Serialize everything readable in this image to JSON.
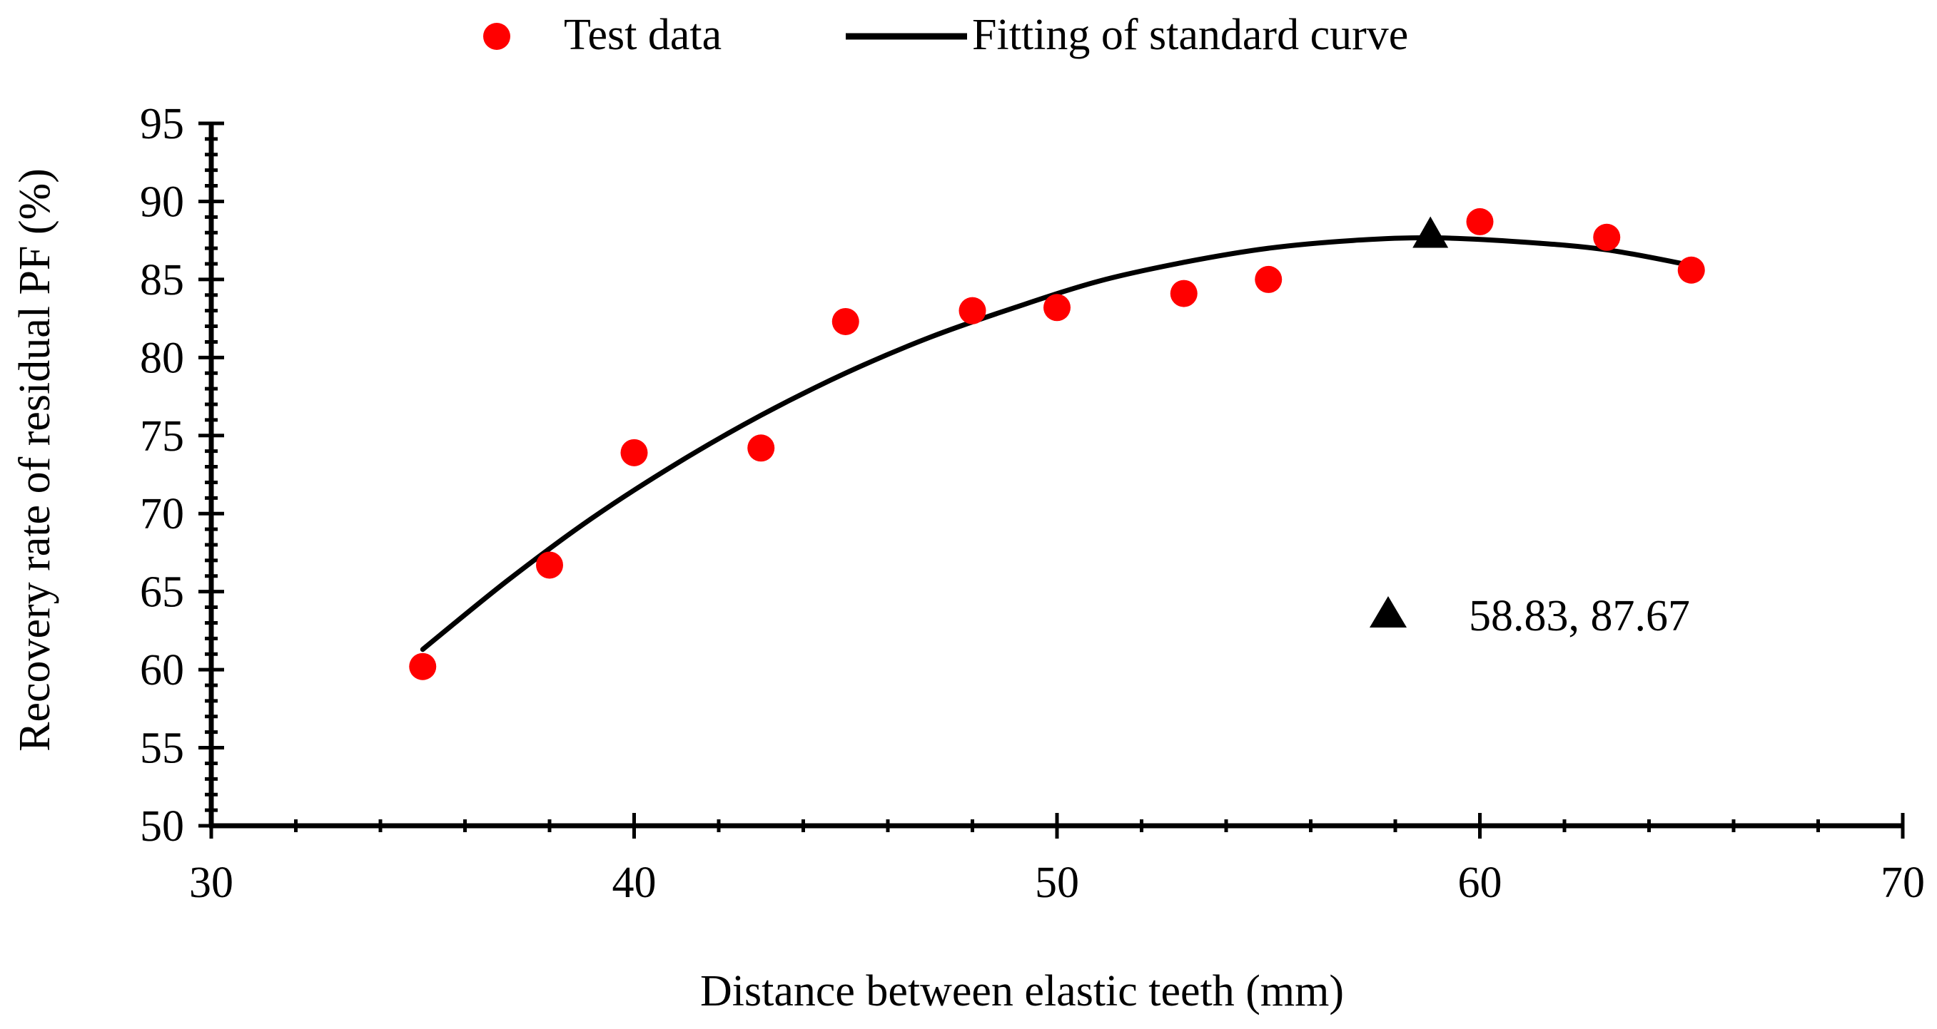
{
  "chart_data": {
    "type": "scatter",
    "title": "",
    "xlabel": "Distance between elastic teeth (mm)",
    "ylabel": "Recovery rate of residual PF (%)",
    "xlim": [
      30,
      70
    ],
    "ylim": [
      50,
      95
    ],
    "x_major_ticks": [
      30,
      40,
      50,
      60,
      70
    ],
    "x_tick_labels": [
      "30",
      "40",
      "50",
      "60",
      "70"
    ],
    "x_minor_step": 2,
    "y_major_ticks": [
      50,
      55,
      60,
      65,
      70,
      75,
      80,
      85,
      90,
      95
    ],
    "y_tick_labels": [
      "50",
      "55",
      "60",
      "65",
      "70",
      "75",
      "80",
      "85",
      "90",
      "95"
    ],
    "y_minor_step": 1,
    "grid": false,
    "legend_position": "top-center",
    "series": [
      {
        "name": "Test data",
        "kind": "scatter",
        "color": "#ff0000",
        "x": [
          35,
          38,
          40,
          43,
          45,
          48,
          50,
          53,
          55,
          60,
          63,
          65
        ],
        "y": [
          60.2,
          66.7,
          73.9,
          74.2,
          82.3,
          83.0,
          83.2,
          84.1,
          85.0,
          88.7,
          87.7,
          85.6
        ]
      },
      {
        "name": "Fitting of standard curve",
        "kind": "line",
        "color": "#000000",
        "x": [
          35,
          37,
          39,
          41,
          43,
          45,
          47,
          49,
          51,
          53,
          55,
          57,
          58.83,
          61,
          63,
          65
        ],
        "y": [
          61.3,
          65.7,
          69.7,
          73.2,
          76.3,
          79.0,
          81.3,
          83.2,
          84.9,
          86.1,
          87.0,
          87.5,
          87.67,
          87.4,
          86.9,
          85.9
        ]
      }
    ],
    "annotation": {
      "marker": "triangle",
      "color": "#000000",
      "x": 58.83,
      "y": 87.67,
      "label": "58.83, 87.67"
    }
  }
}
